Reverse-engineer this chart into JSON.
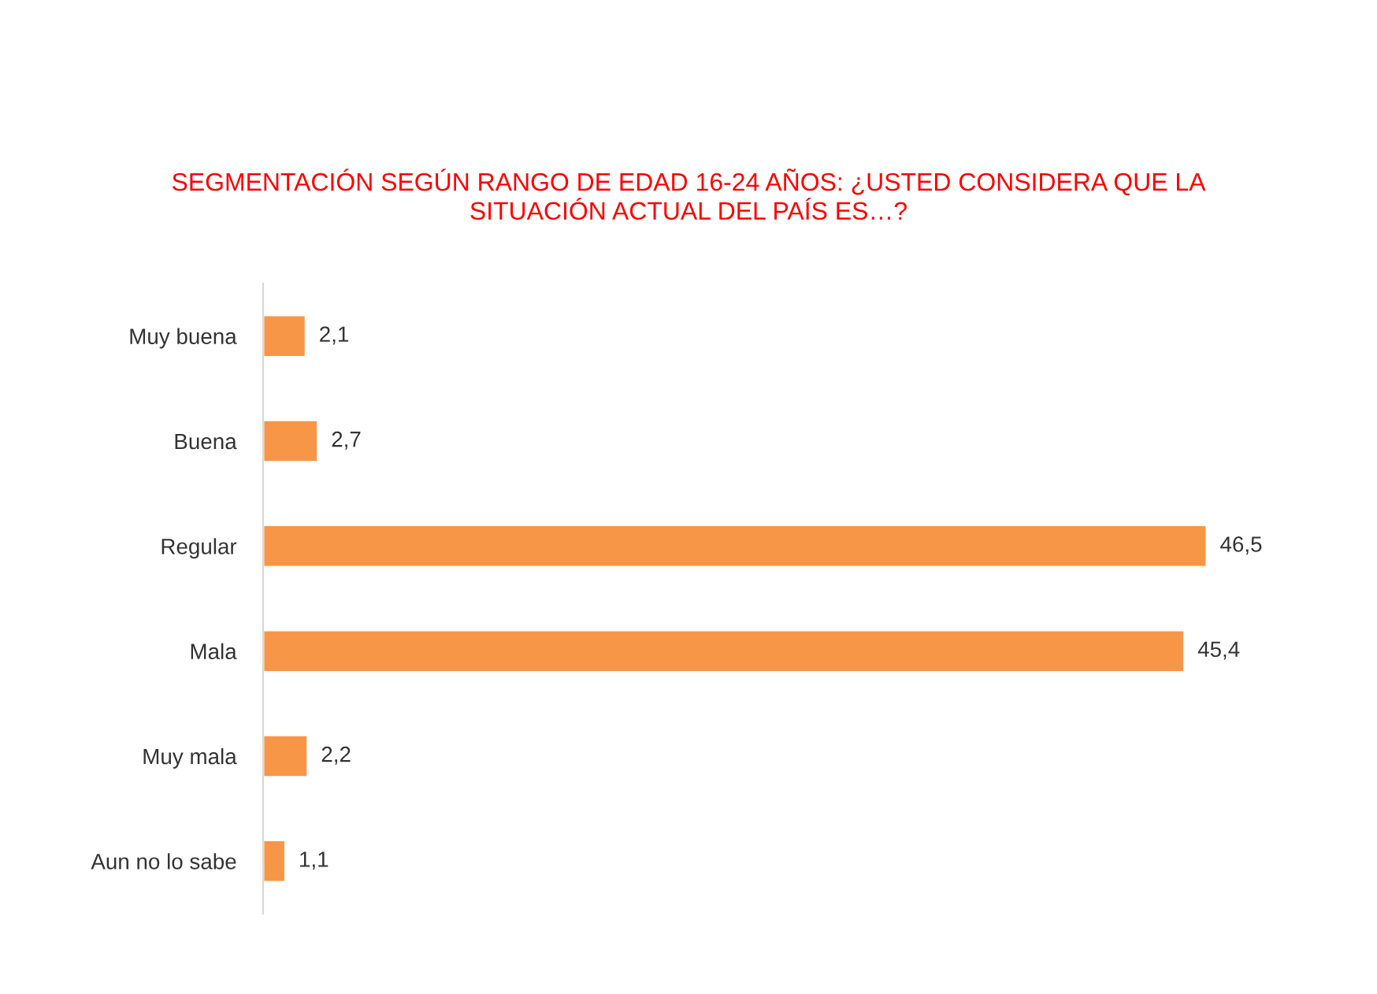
{
  "chart_data": {
    "type": "bar",
    "orientation": "horizontal",
    "title": "SEGMENTACIÓN SEGÚN RANGO DE EDAD 16-24 AÑOS: ¿USTED CONSIDERA QUE LA\nSITUACIÓN ACTUAL DEL PAÍS ES…?",
    "categories": [
      "Muy buena",
      "Buena",
      "Regular",
      "Mala",
      "Muy mala",
      "Aun no lo sabe"
    ],
    "values": [
      2.1,
      2.7,
      46.5,
      45.4,
      2.2,
      1.1
    ],
    "value_labels": [
      "2,1",
      "2,7",
      "46,5",
      "45,4",
      "2,2",
      "1,1"
    ],
    "color": "#f79646",
    "grid": false,
    "legend": false,
    "tick_labels": "y"
  }
}
